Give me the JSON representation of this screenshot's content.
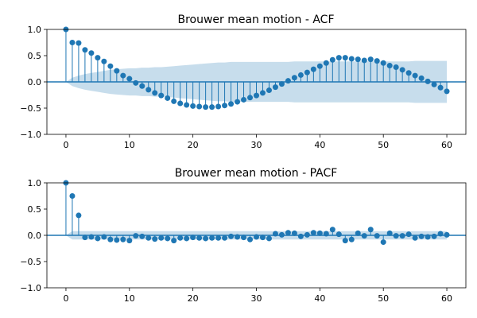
{
  "chart_data": [
    {
      "type": "stem",
      "title": "Brouwer mean motion - ACF",
      "xlabel": "",
      "ylabel": "",
      "xlim": [
        -3,
        63
      ],
      "ylim": [
        -1.0,
        1.0
      ],
      "xticks": [
        0,
        10,
        20,
        30,
        40,
        50,
        60
      ],
      "yticks": [
        -1.0,
        -0.5,
        0.0,
        0.5,
        1.0
      ],
      "ytick_labels": [
        "−1.0",
        "−0.5",
        "0.0",
        "0.5",
        "1.0"
      ],
      "grid": false,
      "color": "#1f77b4",
      "confint_color": "#1f77b4",
      "lags": [
        0,
        1,
        2,
        3,
        4,
        5,
        6,
        7,
        8,
        9,
        10,
        11,
        12,
        13,
        14,
        15,
        16,
        17,
        18,
        19,
        20,
        21,
        22,
        23,
        24,
        25,
        26,
        27,
        28,
        29,
        30,
        31,
        32,
        33,
        34,
        35,
        36,
        37,
        38,
        39,
        40,
        41,
        42,
        43,
        44,
        45,
        46,
        47,
        48,
        49,
        50,
        51,
        52,
        53,
        54,
        55,
        56,
        57,
        58,
        59,
        60
      ],
      "values": [
        1.0,
        0.75,
        0.74,
        0.61,
        0.55,
        0.46,
        0.39,
        0.3,
        0.21,
        0.12,
        0.06,
        -0.02,
        -0.08,
        -0.15,
        -0.21,
        -0.26,
        -0.31,
        -0.37,
        -0.41,
        -0.44,
        -0.46,
        -0.47,
        -0.48,
        -0.48,
        -0.47,
        -0.45,
        -0.42,
        -0.38,
        -0.34,
        -0.3,
        -0.26,
        -0.21,
        -0.16,
        -0.1,
        -0.04,
        0.02,
        0.08,
        0.13,
        0.18,
        0.24,
        0.3,
        0.36,
        0.42,
        0.46,
        0.46,
        0.44,
        0.43,
        0.41,
        0.43,
        0.4,
        0.36,
        0.31,
        0.28,
        0.23,
        0.17,
        0.12,
        0.07,
        0.01,
        -0.05,
        -0.11,
        -0.18
      ],
      "confidence_band": [
        0.0,
        0.08,
        0.12,
        0.15,
        0.17,
        0.19,
        0.21,
        0.23,
        0.24,
        0.25,
        0.26,
        0.26,
        0.27,
        0.27,
        0.28,
        0.28,
        0.29,
        0.3,
        0.31,
        0.32,
        0.33,
        0.34,
        0.35,
        0.36,
        0.37,
        0.37,
        0.38,
        0.38,
        0.38,
        0.38,
        0.38,
        0.38,
        0.38,
        0.38,
        0.38,
        0.38,
        0.39,
        0.39,
        0.39,
        0.39,
        0.39,
        0.39,
        0.39,
        0.39,
        0.39,
        0.39,
        0.39,
        0.39,
        0.39,
        0.39,
        0.39,
        0.39,
        0.39,
        0.39,
        0.39,
        0.4,
        0.4,
        0.4,
        0.4,
        0.4,
        0.4
      ]
    },
    {
      "type": "stem",
      "title": "Brouwer mean motion - PACF",
      "xlabel": "",
      "ylabel": "",
      "xlim": [
        -3,
        63
      ],
      "ylim": [
        -1.0,
        1.0
      ],
      "xticks": [
        0,
        10,
        20,
        30,
        40,
        50,
        60
      ],
      "yticks": [
        -1.0,
        -0.5,
        0.0,
        0.5,
        1.0
      ],
      "ytick_labels": [
        "−1.0",
        "−0.5",
        "0.0",
        "0.5",
        "1.0"
      ],
      "grid": false,
      "color": "#1f77b4",
      "confint_color": "#1f77b4",
      "lags": [
        0,
        1,
        2,
        3,
        4,
        5,
        6,
        7,
        8,
        9,
        10,
        11,
        12,
        13,
        14,
        15,
        16,
        17,
        18,
        19,
        20,
        21,
        22,
        23,
        24,
        25,
        26,
        27,
        28,
        29,
        30,
        31,
        32,
        33,
        34,
        35,
        36,
        37,
        38,
        39,
        40,
        41,
        42,
        43,
        44,
        45,
        46,
        47,
        48,
        49,
        50,
        51,
        52,
        53,
        54,
        55,
        56,
        57,
        58,
        59,
        60
      ],
      "values": [
        1.0,
        0.75,
        0.38,
        -0.04,
        -0.03,
        -0.06,
        -0.03,
        -0.08,
        -0.09,
        -0.08,
        -0.1,
        -0.01,
        -0.02,
        -0.05,
        -0.07,
        -0.05,
        -0.06,
        -0.1,
        -0.05,
        -0.06,
        -0.04,
        -0.05,
        -0.06,
        -0.05,
        -0.05,
        -0.05,
        -0.02,
        -0.03,
        -0.04,
        -0.08,
        -0.03,
        -0.04,
        -0.06,
        0.03,
        0.01,
        0.05,
        0.04,
        -0.02,
        0.01,
        0.05,
        0.04,
        0.03,
        0.11,
        0.02,
        -0.1,
        -0.08,
        0.04,
        -0.01,
        0.11,
        -0.01,
        -0.13,
        0.04,
        -0.01,
        -0.01,
        0.02,
        -0.05,
        -0.02,
        -0.03,
        -0.02,
        0.03,
        0.01
      ],
      "confidence_band": [
        0.0,
        0.08,
        0.08,
        0.08,
        0.08,
        0.08,
        0.08,
        0.08,
        0.08,
        0.08,
        0.08,
        0.08,
        0.08,
        0.08,
        0.08,
        0.08,
        0.08,
        0.08,
        0.08,
        0.08,
        0.08,
        0.08,
        0.08,
        0.08,
        0.08,
        0.08,
        0.08,
        0.08,
        0.08,
        0.08,
        0.08,
        0.08,
        0.08,
        0.08,
        0.08,
        0.08,
        0.08,
        0.08,
        0.08,
        0.08,
        0.08,
        0.08,
        0.08,
        0.08,
        0.08,
        0.08,
        0.08,
        0.08,
        0.08,
        0.08,
        0.08,
        0.08,
        0.08,
        0.08,
        0.08,
        0.08,
        0.08,
        0.08,
        0.08,
        0.08,
        0.08
      ]
    }
  ]
}
